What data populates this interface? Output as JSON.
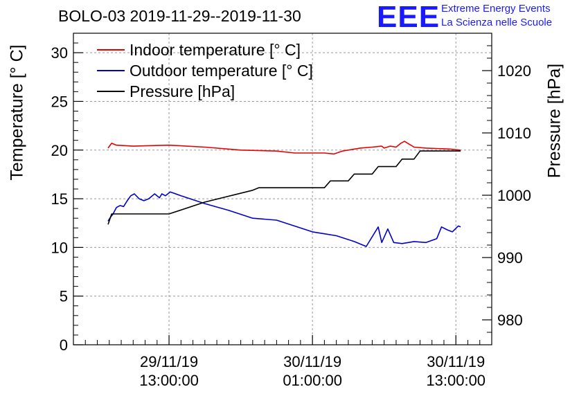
{
  "title": "BOLO-03 2019-11-29--2019-11-30",
  "logo": {
    "mark": "EEE",
    "line1": "Extreme Energy Events",
    "line2": "La Scienza nelle Scuole",
    "color": "#1a1aff"
  },
  "chart_data": {
    "type": "line",
    "ylabel_left": "Temperature [° C]",
    "ylabel_right": "Pressure [hPa]",
    "ylim_left": [
      0,
      32
    ],
    "ylim_right": [
      976,
      1026
    ],
    "yticks_left": [
      "0",
      "5",
      "10",
      "15",
      "20",
      "25",
      "30"
    ],
    "yticks_right": [
      "980",
      "990",
      "1000",
      "1010",
      "1020"
    ],
    "x_ticks": [
      {
        "t": 0,
        "line1": "29/11/19",
        "line2": "13:00:00"
      },
      {
        "t": 12,
        "line1": "30/11/19",
        "line2": "01:00:00"
      },
      {
        "t": 24,
        "line1": "30/11/19",
        "line2": "13:00:00"
      }
    ],
    "xlim_hours": [
      -8,
      27
    ],
    "grid": true,
    "legend_position": "top-left",
    "series": [
      {
        "name": "Indoor temperature [° C]",
        "axis": "left",
        "color": "#e60000",
        "points": [
          [
            -5.1,
            20.2
          ],
          [
            -4.8,
            20.7
          ],
          [
            -4.4,
            20.5
          ],
          [
            -3,
            20.4
          ],
          [
            0,
            20.5
          ],
          [
            3,
            20.3
          ],
          [
            6,
            20.0
          ],
          [
            9,
            19.9
          ],
          [
            10.5,
            19.7
          ],
          [
            13,
            19.7
          ],
          [
            13.8,
            19.6
          ],
          [
            14.5,
            19.9
          ],
          [
            16,
            20.2
          ],
          [
            17,
            20.3
          ],
          [
            17.8,
            20.4
          ],
          [
            18,
            20.2
          ],
          [
            18.5,
            20.4
          ],
          [
            19,
            20.3
          ],
          [
            19.4,
            20.7
          ],
          [
            19.7,
            20.9
          ],
          [
            20.1,
            20.6
          ],
          [
            20.5,
            20.3
          ],
          [
            21.5,
            20.2
          ],
          [
            23.5,
            20.1
          ],
          [
            24.4,
            20.0
          ]
        ]
      },
      {
        "name": "Outdoor temperature [° C]",
        "axis": "left",
        "color": "#0000cc",
        "points": [
          [
            -5.1,
            12.7
          ],
          [
            -4.9,
            13.1
          ],
          [
            -4.7,
            13.4
          ],
          [
            -4.4,
            14.1
          ],
          [
            -4.1,
            14.3
          ],
          [
            -3.8,
            14.2
          ],
          [
            -3.5,
            14.8
          ],
          [
            -3.2,
            15.3
          ],
          [
            -2.9,
            15.5
          ],
          [
            -2.5,
            15.0
          ],
          [
            -2.1,
            14.8
          ],
          [
            -1.7,
            15.0
          ],
          [
            -1.2,
            15.5
          ],
          [
            -0.8,
            15.1
          ],
          [
            -0.6,
            15.5
          ],
          [
            -0.3,
            15.3
          ],
          [
            0.1,
            15.7
          ],
          [
            1,
            15.3
          ],
          [
            3,
            14.5
          ],
          [
            5,
            13.8
          ],
          [
            7,
            13.0
          ],
          [
            9,
            12.8
          ],
          [
            10,
            12.4
          ],
          [
            11,
            12.0
          ],
          [
            12,
            11.6
          ],
          [
            13,
            11.4
          ],
          [
            14,
            11.2
          ],
          [
            15.5,
            10.6
          ],
          [
            16.5,
            10.1
          ],
          [
            17.5,
            12.1
          ],
          [
            17.8,
            10.5
          ],
          [
            18.3,
            11.9
          ],
          [
            18.8,
            10.5
          ],
          [
            19.5,
            10.4
          ],
          [
            20.5,
            10.6
          ],
          [
            21.5,
            10.5
          ],
          [
            22.4,
            10.9
          ],
          [
            22.8,
            12.1
          ],
          [
            23.3,
            11.8
          ],
          [
            23.7,
            11.6
          ],
          [
            24.2,
            12.2
          ],
          [
            24.4,
            12.1
          ]
        ]
      },
      {
        "name": "Pressure [hPa]",
        "axis": "right",
        "color": "#000000",
        "points": [
          [
            -5.1,
            995.3
          ],
          [
            -4.8,
            997.0
          ],
          [
            0,
            997.0
          ],
          [
            3,
            998.9
          ],
          [
            7,
            1000.8
          ],
          [
            7.5,
            1001.2
          ],
          [
            13,
            1001.2
          ],
          [
            13.5,
            1002.3
          ],
          [
            15,
            1002.3
          ],
          [
            15.5,
            1003.4
          ],
          [
            17,
            1003.4
          ],
          [
            17.5,
            1004.6
          ],
          [
            19,
            1004.6
          ],
          [
            19.5,
            1005.8
          ],
          [
            20.5,
            1005.8
          ],
          [
            21,
            1007.1
          ],
          [
            24.4,
            1007.1
          ]
        ]
      }
    ]
  }
}
